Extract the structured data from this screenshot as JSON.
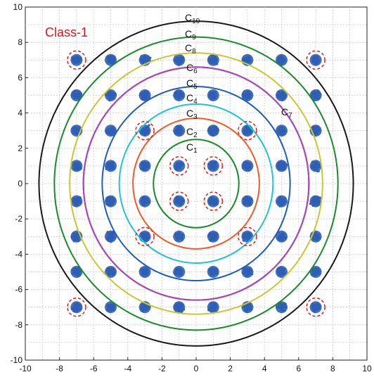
{
  "chart_data": {
    "type": "scatter",
    "title": "Class-1",
    "title_color": "#d7191c",
    "xlabel": "",
    "ylabel": "",
    "xlim": [
      -10,
      10
    ],
    "ylim": [
      -10,
      10
    ],
    "grid": true,
    "x_ticks": [
      -10,
      -8,
      -6,
      -4,
      -2,
      0,
      2,
      4,
      6,
      8,
      10
    ],
    "y_ticks": [
      -10,
      -8,
      -6,
      -4,
      -2,
      0,
      2,
      4,
      6,
      8,
      10
    ],
    "constellation_levels": [
      -7,
      -5,
      -3,
      -1,
      1,
      3,
      5,
      7
    ],
    "cluster_color": "#2f5fb4",
    "highlight_color": "#e31a1c",
    "highlighted_points": [
      [
        -7,
        7
      ],
      [
        7,
        7
      ],
      [
        -7,
        -7
      ],
      [
        7,
        -7
      ],
      [
        -3,
        3
      ],
      [
        3,
        3
      ],
      [
        -3,
        -3
      ],
      [
        3,
        -3
      ],
      [
        -1,
        1
      ],
      [
        1,
        1
      ],
      [
        -1,
        -1
      ],
      [
        1,
        -1
      ]
    ],
    "circles": [
      {
        "name": "C",
        "sub": "1",
        "radius": 2.5,
        "color": "#1a8a2e"
      },
      {
        "name": "C",
        "sub": "2",
        "radius": 3.7,
        "color": "#f05a28"
      },
      {
        "name": "C",
        "sub": "3",
        "radius": 4.5,
        "color": "#20c4cc"
      },
      {
        "name": "C",
        "sub": "4",
        "radius": 5.5,
        "color": "#1f5cb8"
      },
      {
        "name": "C",
        "sub": "5",
        "radius": 6.6,
        "color": "#a64ab4"
      },
      {
        "name": "C",
        "sub": "6",
        "radius": 6.6,
        "color": "#a64ab4"
      },
      {
        "name": "C",
        "sub": "7",
        "radius": 6.6,
        "color": "#a64ab4"
      },
      {
        "name": "C",
        "sub": "8",
        "radius": 7.4,
        "color": "#c8c832"
      },
      {
        "name": "C",
        "sub": "9",
        "radius": 8.3,
        "color": "#1a8a2e"
      },
      {
        "name": "C",
        "sub": "10",
        "radius": 9.2,
        "color": "#1a1a1a"
      }
    ]
  }
}
